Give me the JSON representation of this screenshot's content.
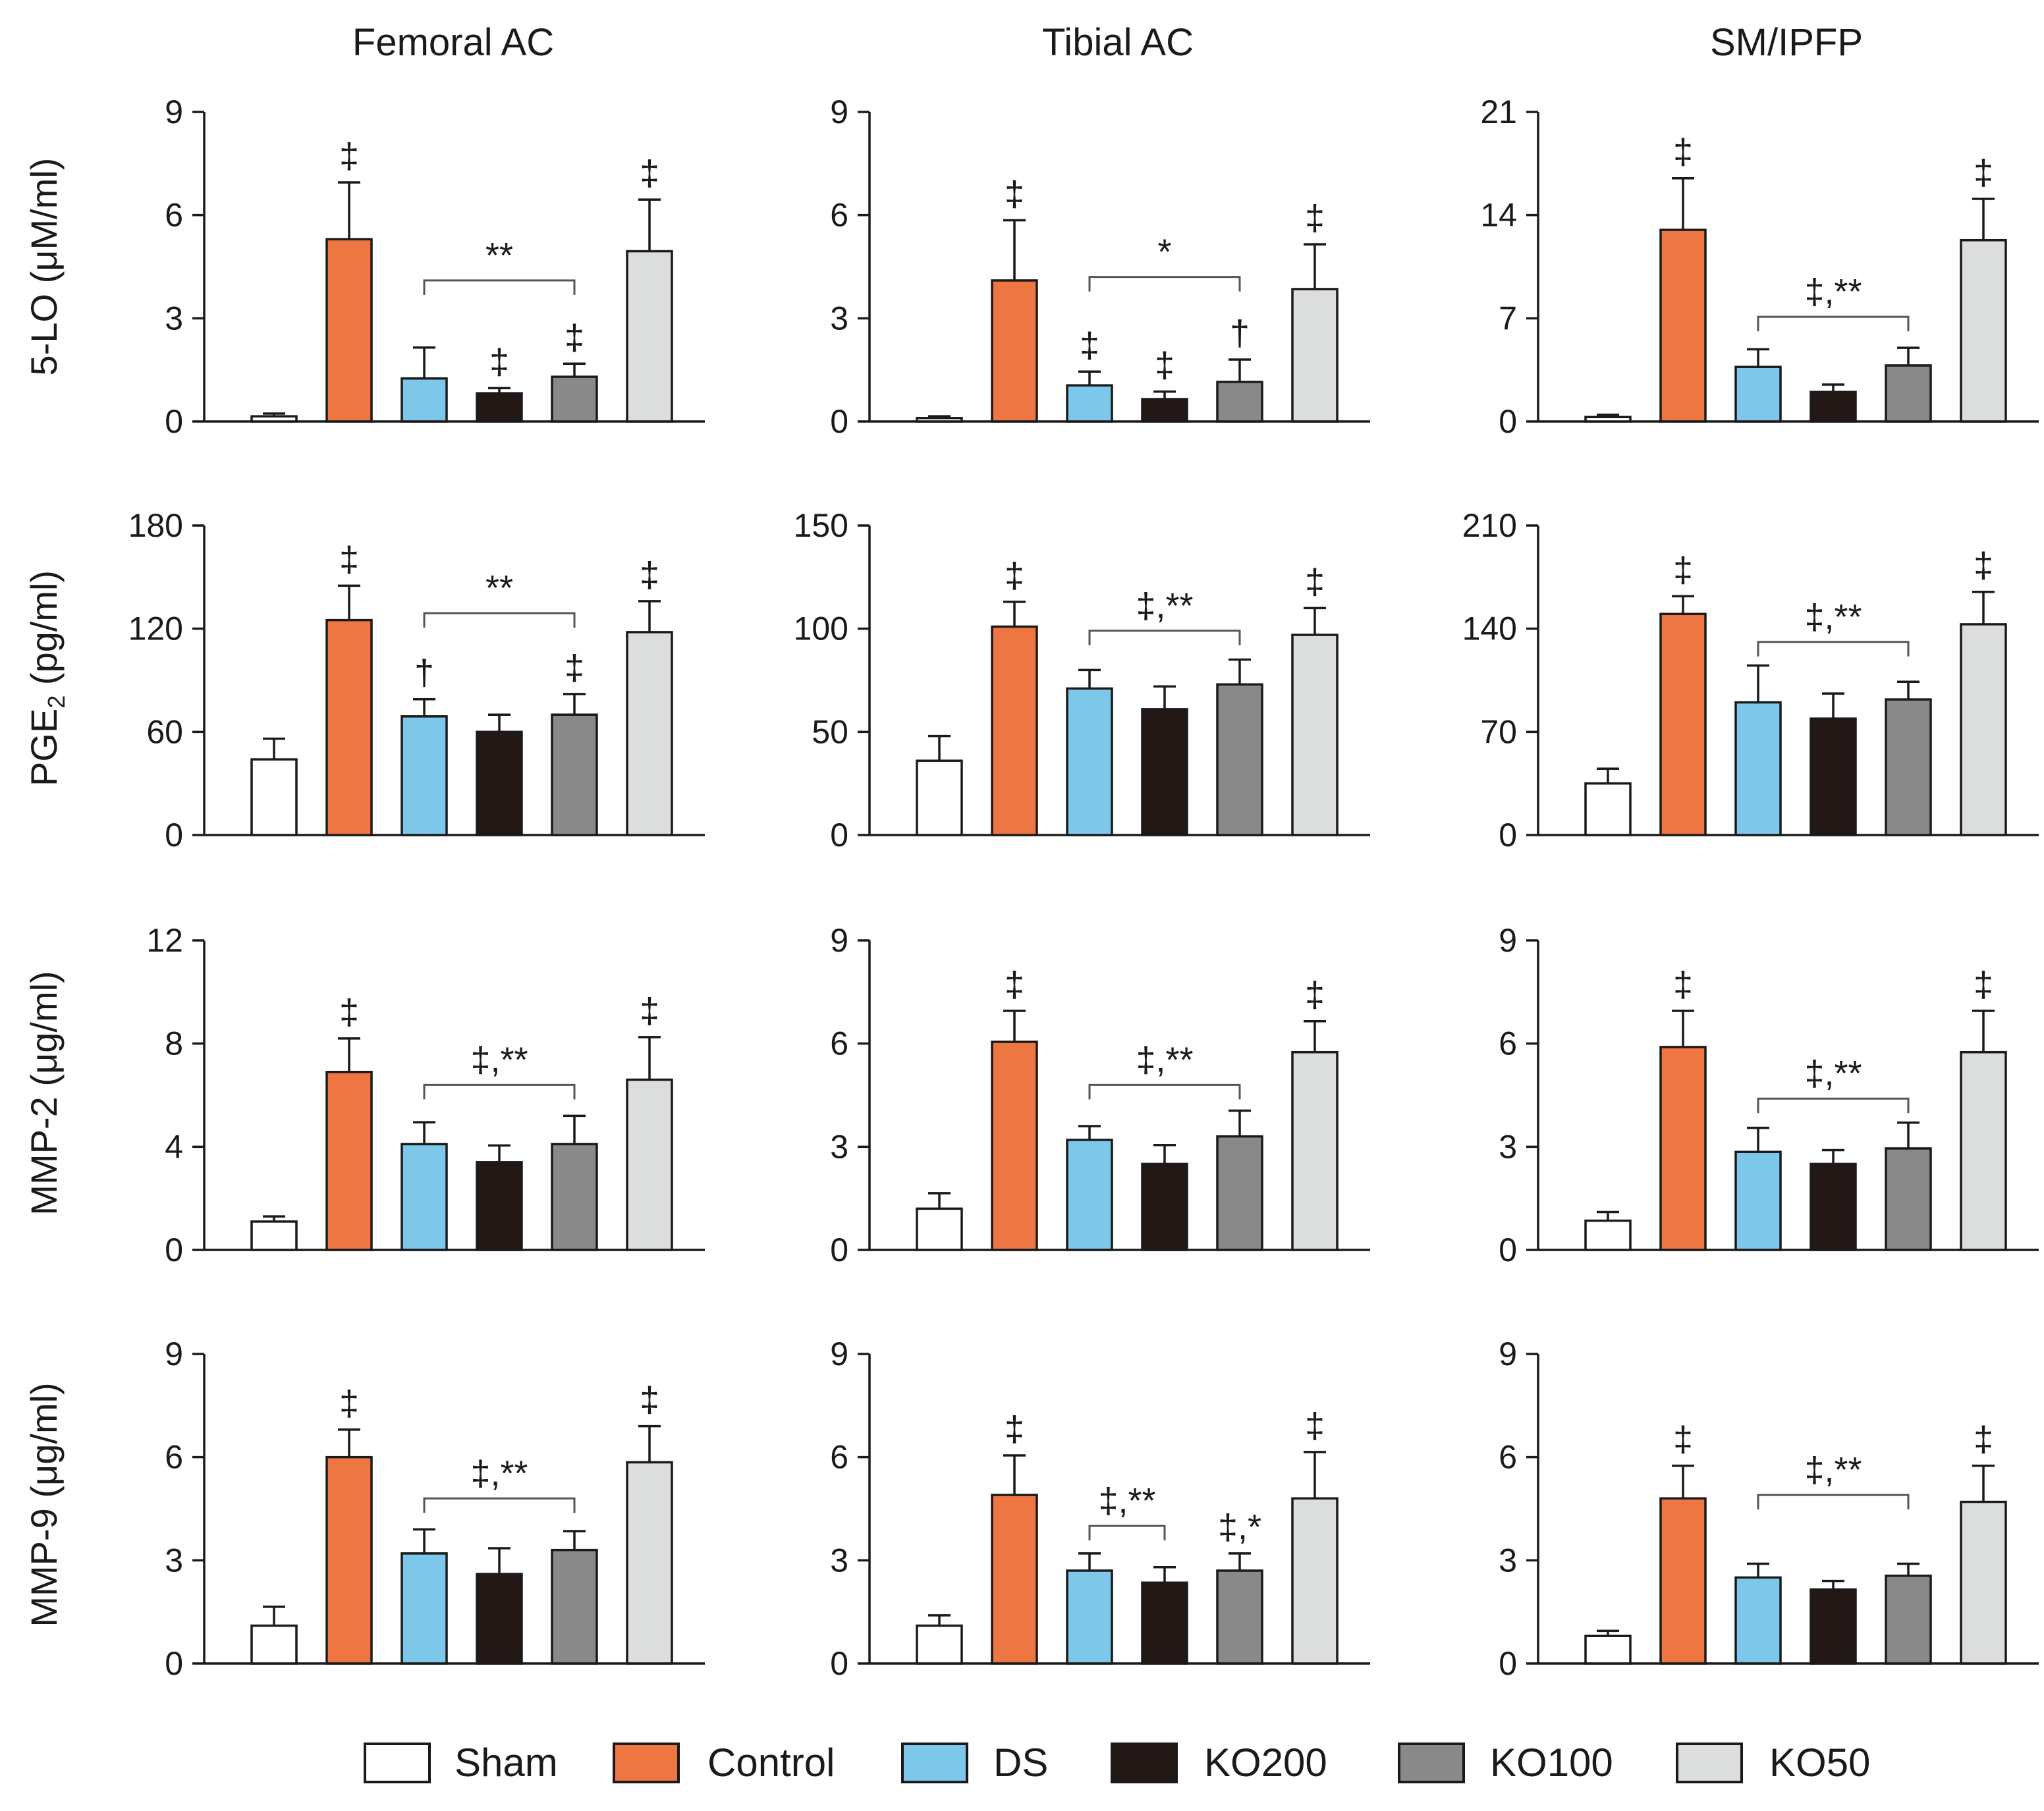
{
  "chart_data": {
    "type": "bar",
    "column_titles": [
      "Femoral AC",
      "Tibial AC",
      "SM/IPFP"
    ],
    "row_ylabels": [
      {
        "main": "5-LO (μM/ml)"
      },
      {
        "main": "PGE",
        "sub": "2",
        "unit": " (pg/ml)"
      },
      {
        "main": "MMP-2 (μg/ml)"
      },
      {
        "main": "MMP-9 (μg/ml)"
      }
    ],
    "groups": [
      "Sham",
      "Control",
      "DS",
      "KO200",
      "KO100",
      "KO50"
    ],
    "colors": [
      "#ffffff",
      "#ee7642",
      "#7dc8ea",
      "#231815",
      "#898989",
      "#dcdddd"
    ],
    "panels": [
      {
        "id": "5lo-femoral",
        "ylim": [
          0,
          9
        ],
        "ticks": [
          "0",
          "3",
          "6",
          "9"
        ],
        "values": [
          0.15,
          5.3,
          1.25,
          0.82,
          1.3,
          4.95
        ],
        "errors": [
          0.08,
          1.65,
          0.9,
          0.15,
          0.38,
          1.5
        ],
        "marks": [
          "",
          "‡",
          "",
          "‡",
          "‡",
          "‡"
        ],
        "bracket": {
          "from": 2,
          "to": 4,
          "label": "**",
          "y": 4.1
        }
      },
      {
        "id": "5lo-tibial",
        "ylim": [
          0,
          9
        ],
        "ticks": [
          "0",
          "3",
          "6",
          "9"
        ],
        "values": [
          0.1,
          4.1,
          1.05,
          0.65,
          1.15,
          3.85
        ],
        "errors": [
          0.05,
          1.75,
          0.4,
          0.22,
          0.65,
          1.3
        ],
        "marks": [
          "",
          "‡",
          "‡",
          "‡",
          "†",
          "‡"
        ],
        "bracket": {
          "from": 2,
          "to": 4,
          "label": "*",
          "y": 4.2
        }
      },
      {
        "id": "5lo-smipfp",
        "ylim": [
          0,
          21
        ],
        "ticks": [
          "0",
          "7",
          "14",
          "21"
        ],
        "values": [
          0.3,
          13.0,
          3.7,
          2.0,
          3.8,
          12.3
        ],
        "errors": [
          0.15,
          3.5,
          1.2,
          0.5,
          1.2,
          2.8
        ],
        "marks": [
          "",
          "‡",
          "",
          "",
          "",
          "‡"
        ],
        "bracket": {
          "from": 2,
          "to": 4,
          "label": "‡,**",
          "y": 7.1
        }
      },
      {
        "id": "pge2-femoral",
        "ylim": [
          0,
          180
        ],
        "ticks": [
          "0",
          "60",
          "120",
          "180"
        ],
        "values": [
          44,
          125,
          69,
          60,
          70,
          118
        ],
        "errors": [
          12,
          20,
          10,
          10,
          12,
          18
        ],
        "marks": [
          "",
          "‡",
          "†",
          "",
          "‡",
          "‡"
        ],
        "bracket": {
          "from": 2,
          "to": 4,
          "label": "**",
          "y": 129
        }
      },
      {
        "id": "pge2-tibial",
        "ylim": [
          0,
          150
        ],
        "ticks": [
          "0",
          "50",
          "100",
          "150"
        ],
        "values": [
          36,
          101,
          71,
          61,
          73,
          97
        ],
        "errors": [
          12,
          12,
          9,
          11,
          12,
          13
        ],
        "marks": [
          "",
          "‡",
          "",
          "",
          "",
          "‡"
        ],
        "bracket": {
          "from": 2,
          "to": 4,
          "label": "‡,**",
          "y": 99
        }
      },
      {
        "id": "pge2-smipfp",
        "ylim": [
          0,
          210
        ],
        "ticks": [
          "0",
          "70",
          "140",
          "210"
        ],
        "values": [
          35,
          150,
          90,
          79,
          92,
          143
        ],
        "errors": [
          10,
          12,
          25,
          17,
          12,
          22
        ],
        "marks": [
          "",
          "‡",
          "",
          "",
          "",
          "‡"
        ],
        "bracket": {
          "from": 2,
          "to": 4,
          "label": "‡,**",
          "y": 131
        }
      },
      {
        "id": "mmp2-femoral",
        "ylim": [
          0,
          12
        ],
        "ticks": [
          "0",
          "4",
          "8",
          "12"
        ],
        "values": [
          1.1,
          6.9,
          4.1,
          3.4,
          4.1,
          6.6
        ],
        "errors": [
          0.2,
          1.3,
          0.85,
          0.65,
          1.1,
          1.65
        ],
        "marks": [
          "",
          "‡",
          "",
          "",
          "",
          "‡"
        ],
        "bracket": {
          "from": 2,
          "to": 4,
          "label": "‡,**",
          "y": 6.4
        }
      },
      {
        "id": "mmp2-tibial",
        "ylim": [
          0,
          9
        ],
        "ticks": [
          "0",
          "3",
          "6",
          "9"
        ],
        "values": [
          1.2,
          6.05,
          3.2,
          2.5,
          3.3,
          5.75
        ],
        "errors": [
          0.45,
          0.9,
          0.4,
          0.55,
          0.75,
          0.9
        ],
        "marks": [
          "",
          "‡",
          "",
          "",
          "",
          "‡"
        ],
        "bracket": {
          "from": 2,
          "to": 4,
          "label": "‡,**",
          "y": 4.8
        }
      },
      {
        "id": "mmp2-smipfp",
        "ylim": [
          0,
          9
        ],
        "ticks": [
          "0",
          "3",
          "6",
          "9"
        ],
        "values": [
          0.85,
          5.9,
          2.85,
          2.5,
          2.95,
          5.75
        ],
        "errors": [
          0.25,
          1.05,
          0.7,
          0.4,
          0.75,
          1.2
        ],
        "marks": [
          "",
          "‡",
          "",
          "",
          "",
          "‡"
        ],
        "bracket": {
          "from": 2,
          "to": 4,
          "label": "‡,**",
          "y": 4.4
        }
      },
      {
        "id": "mmp9-femoral",
        "ylim": [
          0,
          9
        ],
        "ticks": [
          "0",
          "3",
          "6",
          "9"
        ],
        "values": [
          1.1,
          6.0,
          3.2,
          2.6,
          3.3,
          5.85
        ],
        "errors": [
          0.55,
          0.8,
          0.7,
          0.75,
          0.55,
          1.05
        ],
        "marks": [
          "",
          "‡",
          "",
          "",
          "",
          "‡"
        ],
        "bracket": {
          "from": 2,
          "to": 4,
          "label": "‡,**",
          "y": 4.8
        }
      },
      {
        "id": "mmp9-tibial",
        "ylim": [
          0,
          9
        ],
        "ticks": [
          "0",
          "3",
          "6",
          "9"
        ],
        "values": [
          1.1,
          4.9,
          2.7,
          2.35,
          2.7,
          4.8
        ],
        "errors": [
          0.3,
          1.15,
          0.5,
          0.45,
          0.5,
          1.35
        ],
        "marks": [
          "",
          "‡",
          "",
          "",
          "‡,*",
          "‡"
        ],
        "bracket": {
          "from": 2,
          "to": 3,
          "label": "‡,**",
          "y": 4.0
        }
      },
      {
        "id": "mmp9-smipfp",
        "ylim": [
          0,
          9
        ],
        "ticks": [
          "0",
          "3",
          "6",
          "9"
        ],
        "values": [
          0.8,
          4.8,
          2.5,
          2.15,
          2.55,
          4.7
        ],
        "errors": [
          0.15,
          0.95,
          0.4,
          0.25,
          0.35,
          1.05
        ],
        "marks": [
          "",
          "‡",
          "",
          "",
          "",
          "‡"
        ],
        "bracket": {
          "from": 2,
          "to": 4,
          "label": "‡,**",
          "y": 4.9
        }
      }
    ],
    "legend_position": "bottom"
  }
}
